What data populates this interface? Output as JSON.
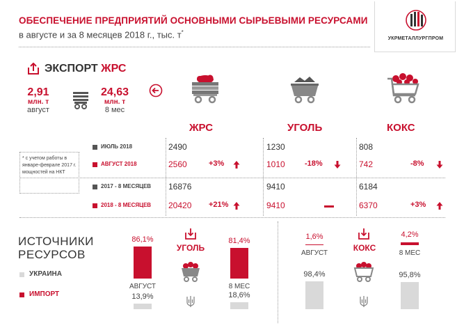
{
  "header": {
    "title": "ОБЕСПЕЧЕНИЕ ПРЕДПРИЯТИЙ ОСНОВНЫМИ СЫРЬЕВЫМИ РЕСУРСАМИ",
    "subtitle": "в августе и за 8 месяцев 2018 г.,  тыс. т",
    "subtitle_mark": "*",
    "logo_text": "УКРМЕТАЛЛУРГПРОМ"
  },
  "export": {
    "label_prefix": "ЭКСПОРТ",
    "label_accent": "ЖРС",
    "august_value": "2,91",
    "august_unit": "млн. т",
    "august_period": "август",
    "ytd_value": "24,63",
    "ytd_unit": "млн. т",
    "ytd_period": "8 мес"
  },
  "footnote": "* с учетом работы в январе-феврале 2017 г. мощностей на НКТ",
  "colors": {
    "accent": "#c8102e",
    "gray": "#d9d9d9",
    "dark_bullet": "#555555"
  },
  "chart_data": [
    {
      "type": "table",
      "title": "",
      "columns": [
        "ЖРС",
        "УГОЛЬ",
        "КОКС"
      ],
      "rows": [
        {
          "label": "ИЮЛЬ 2018",
          "values": [
            "2490",
            "1230",
            "808"
          ],
          "changes": [
            "",
            "",
            ""
          ],
          "trend": [
            "",
            "",
            ""
          ]
        },
        {
          "label": "АВГУСТ 2018",
          "values": [
            "2560",
            "1010",
            "742"
          ],
          "changes": [
            "+3%",
            "-18%",
            "-8%"
          ],
          "trend": [
            "up",
            "down",
            "down"
          ]
        },
        {
          "label": "2017 - 8 МЕСЯЦЕВ",
          "values": [
            "16876",
            "9410",
            "6184"
          ],
          "changes": [
            "",
            "",
            ""
          ],
          "trend": [
            "",
            "",
            ""
          ]
        },
        {
          "label": "2018 - 8 МЕСЯЦЕВ",
          "values": [
            "20420",
            "9410",
            "6370"
          ],
          "changes": [
            "+21%",
            "",
            "+3%"
          ],
          "trend": [
            "up",
            "flat",
            "up"
          ]
        }
      ]
    },
    {
      "type": "bar",
      "title": "ИСТОЧНИКИ РЕСУРСОВ",
      "legend": [
        "УКРАИНА",
        "ИМПОРТ"
      ],
      "groups": [
        {
          "name": "УГОЛЬ",
          "categories": [
            "АВГУСТ",
            "8 МЕС"
          ],
          "series": [
            {
              "name": "ИМПОРТ",
              "values": [
                86.1,
                81.4
              ],
              "labels": [
                "86,1%",
                "81,4%"
              ]
            },
            {
              "name": "УКРАИНА",
              "values": [
                13.9,
                18.6
              ],
              "labels": [
                "13,9%",
                "18,6%"
              ]
            }
          ]
        },
        {
          "name": "КОКС",
          "categories": [
            "АВГУСТ",
            "8 МЕС"
          ],
          "series": [
            {
              "name": "ИМПОРТ",
              "values": [
                1.6,
                4.2
              ],
              "labels": [
                "1,6%",
                "4,2%"
              ]
            },
            {
              "name": "УКРАИНА",
              "values": [
                98.4,
                95.8
              ],
              "labels": [
                "98,4%",
                "95,8%"
              ]
            }
          ]
        }
      ]
    }
  ]
}
